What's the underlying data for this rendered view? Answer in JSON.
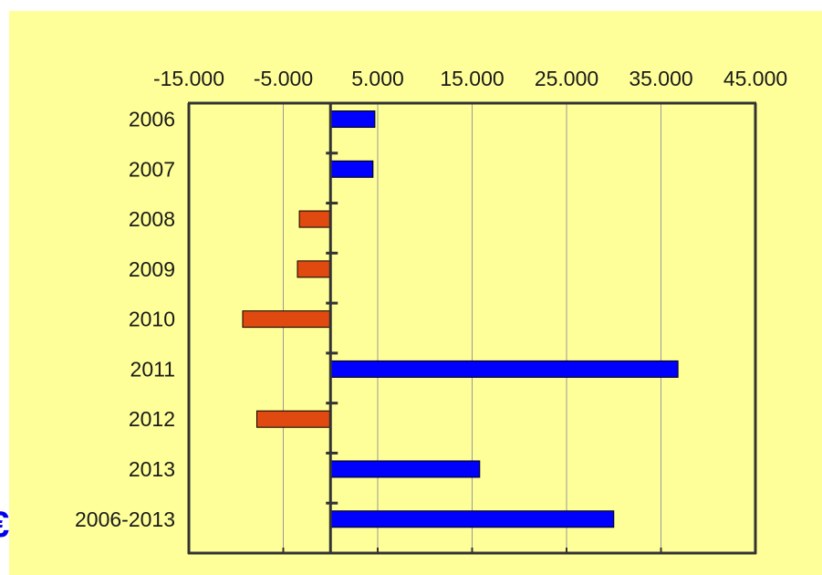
{
  "page": {
    "partial_glyph": "€"
  },
  "chart_data": {
    "type": "bar",
    "orientation": "horizontal",
    "categories": [
      "2006",
      "2007",
      "2008",
      "2009",
      "2010",
      "2011",
      "2012",
      "2013",
      "2006-2013"
    ],
    "values": [
      4700,
      4500,
      -3300,
      -3500,
      -9300,
      36800,
      -7800,
      15800,
      30000
    ],
    "xlim": [
      -15000,
      45000
    ],
    "x_ticks": [
      -15000,
      -5000,
      5000,
      15000,
      25000,
      35000,
      45000
    ],
    "x_tick_labels": [
      "-15.000",
      "-5.000",
      "5.000",
      "15.000",
      "25.000",
      "35.000",
      "45.000"
    ],
    "x_axis_position": "top",
    "grid": "vertical",
    "legend": "none",
    "colors": {
      "positive": "#0000ff",
      "negative": "#e04a10",
      "background": "#ffff99",
      "axis": "#333333",
      "grid": "#999999"
    },
    "title": "",
    "xlabel": "",
    "ylabel": ""
  }
}
